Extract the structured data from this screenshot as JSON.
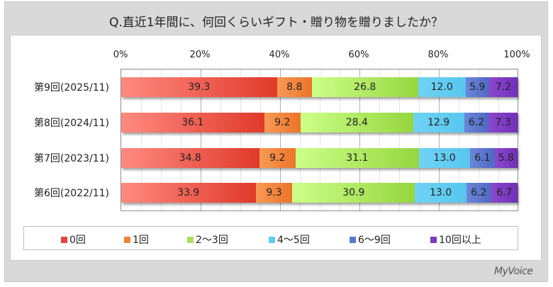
{
  "chart_data": {
    "type": "bar",
    "orientation": "horizontal",
    "stacked": "percent",
    "title": "Q.直近1年間に、何回くらいギフト・贈り物を贈りましたか？",
    "xlabel": "",
    "ylabel": "",
    "xlim": [
      0,
      100
    ],
    "x_ticks": [
      "0%",
      "20%",
      "40%",
      "60%",
      "80%",
      "100%"
    ],
    "grid": true,
    "legend_position": "bottom",
    "categories": [
      "第9回(2025/11)",
      "第8回(2024/11)",
      "第7回(2023/11)",
      "第6回(2022/11)"
    ],
    "series": [
      {
        "name": "0回",
        "color": "#e8453a",
        "values": [
          39.3,
          36.1,
          34.8,
          33.9
        ]
      },
      {
        "name": "1回",
        "color": "#f0843a",
        "values": [
          8.8,
          9.2,
          9.2,
          9.3
        ]
      },
      {
        "name": "2〜3回",
        "color": "#a9e05a",
        "values": [
          26.8,
          28.4,
          31.1,
          30.9
        ]
      },
      {
        "name": "4〜5回",
        "color": "#5ccbf0",
        "values": [
          12.0,
          12.9,
          13.0,
          13.0
        ]
      },
      {
        "name": "6〜9回",
        "color": "#5b77cf",
        "values": [
          5.9,
          6.2,
          6.1,
          6.2
        ]
      },
      {
        "name": "10回以上",
        "color": "#7d3bc0",
        "values": [
          7.2,
          7.3,
          5.8,
          6.7
        ]
      }
    ]
  },
  "title": "Q.直近1年間に、何回くらいギフト・贈り物を贈りましたか？",
  "ticks": [
    "0%",
    "20%",
    "40%",
    "60%",
    "80%",
    "100%"
  ],
  "rows": [
    {
      "label": "第9回(2025/11)",
      "values": [
        "39.3",
        "8.8",
        "26.8",
        "12.0",
        "5.9",
        "7.2"
      ]
    },
    {
      "label": "第8回(2024/11)",
      "values": [
        "36.1",
        "9.2",
        "28.4",
        "12.9",
        "6.2",
        "7.3"
      ]
    },
    {
      "label": "第7回(2023/11)",
      "values": [
        "34.8",
        "9.2",
        "31.1",
        "13.0",
        "6.1",
        "5.8"
      ]
    },
    {
      "label": "第6回(2022/11)",
      "values": [
        "33.9",
        "9.3",
        "30.9",
        "13.0",
        "6.2",
        "6.7"
      ]
    }
  ],
  "legend": [
    "0回",
    "1回",
    "2〜3回",
    "4〜5回",
    "6〜9回",
    "10回以上"
  ],
  "colors": {
    "s0": "#e8453a",
    "s1": "#f0843a",
    "s2": "#a9e05a",
    "s3": "#5ccbf0",
    "s4": "#5b77cf",
    "s5": "#7d3bc0"
  },
  "logo": "MyVoice"
}
